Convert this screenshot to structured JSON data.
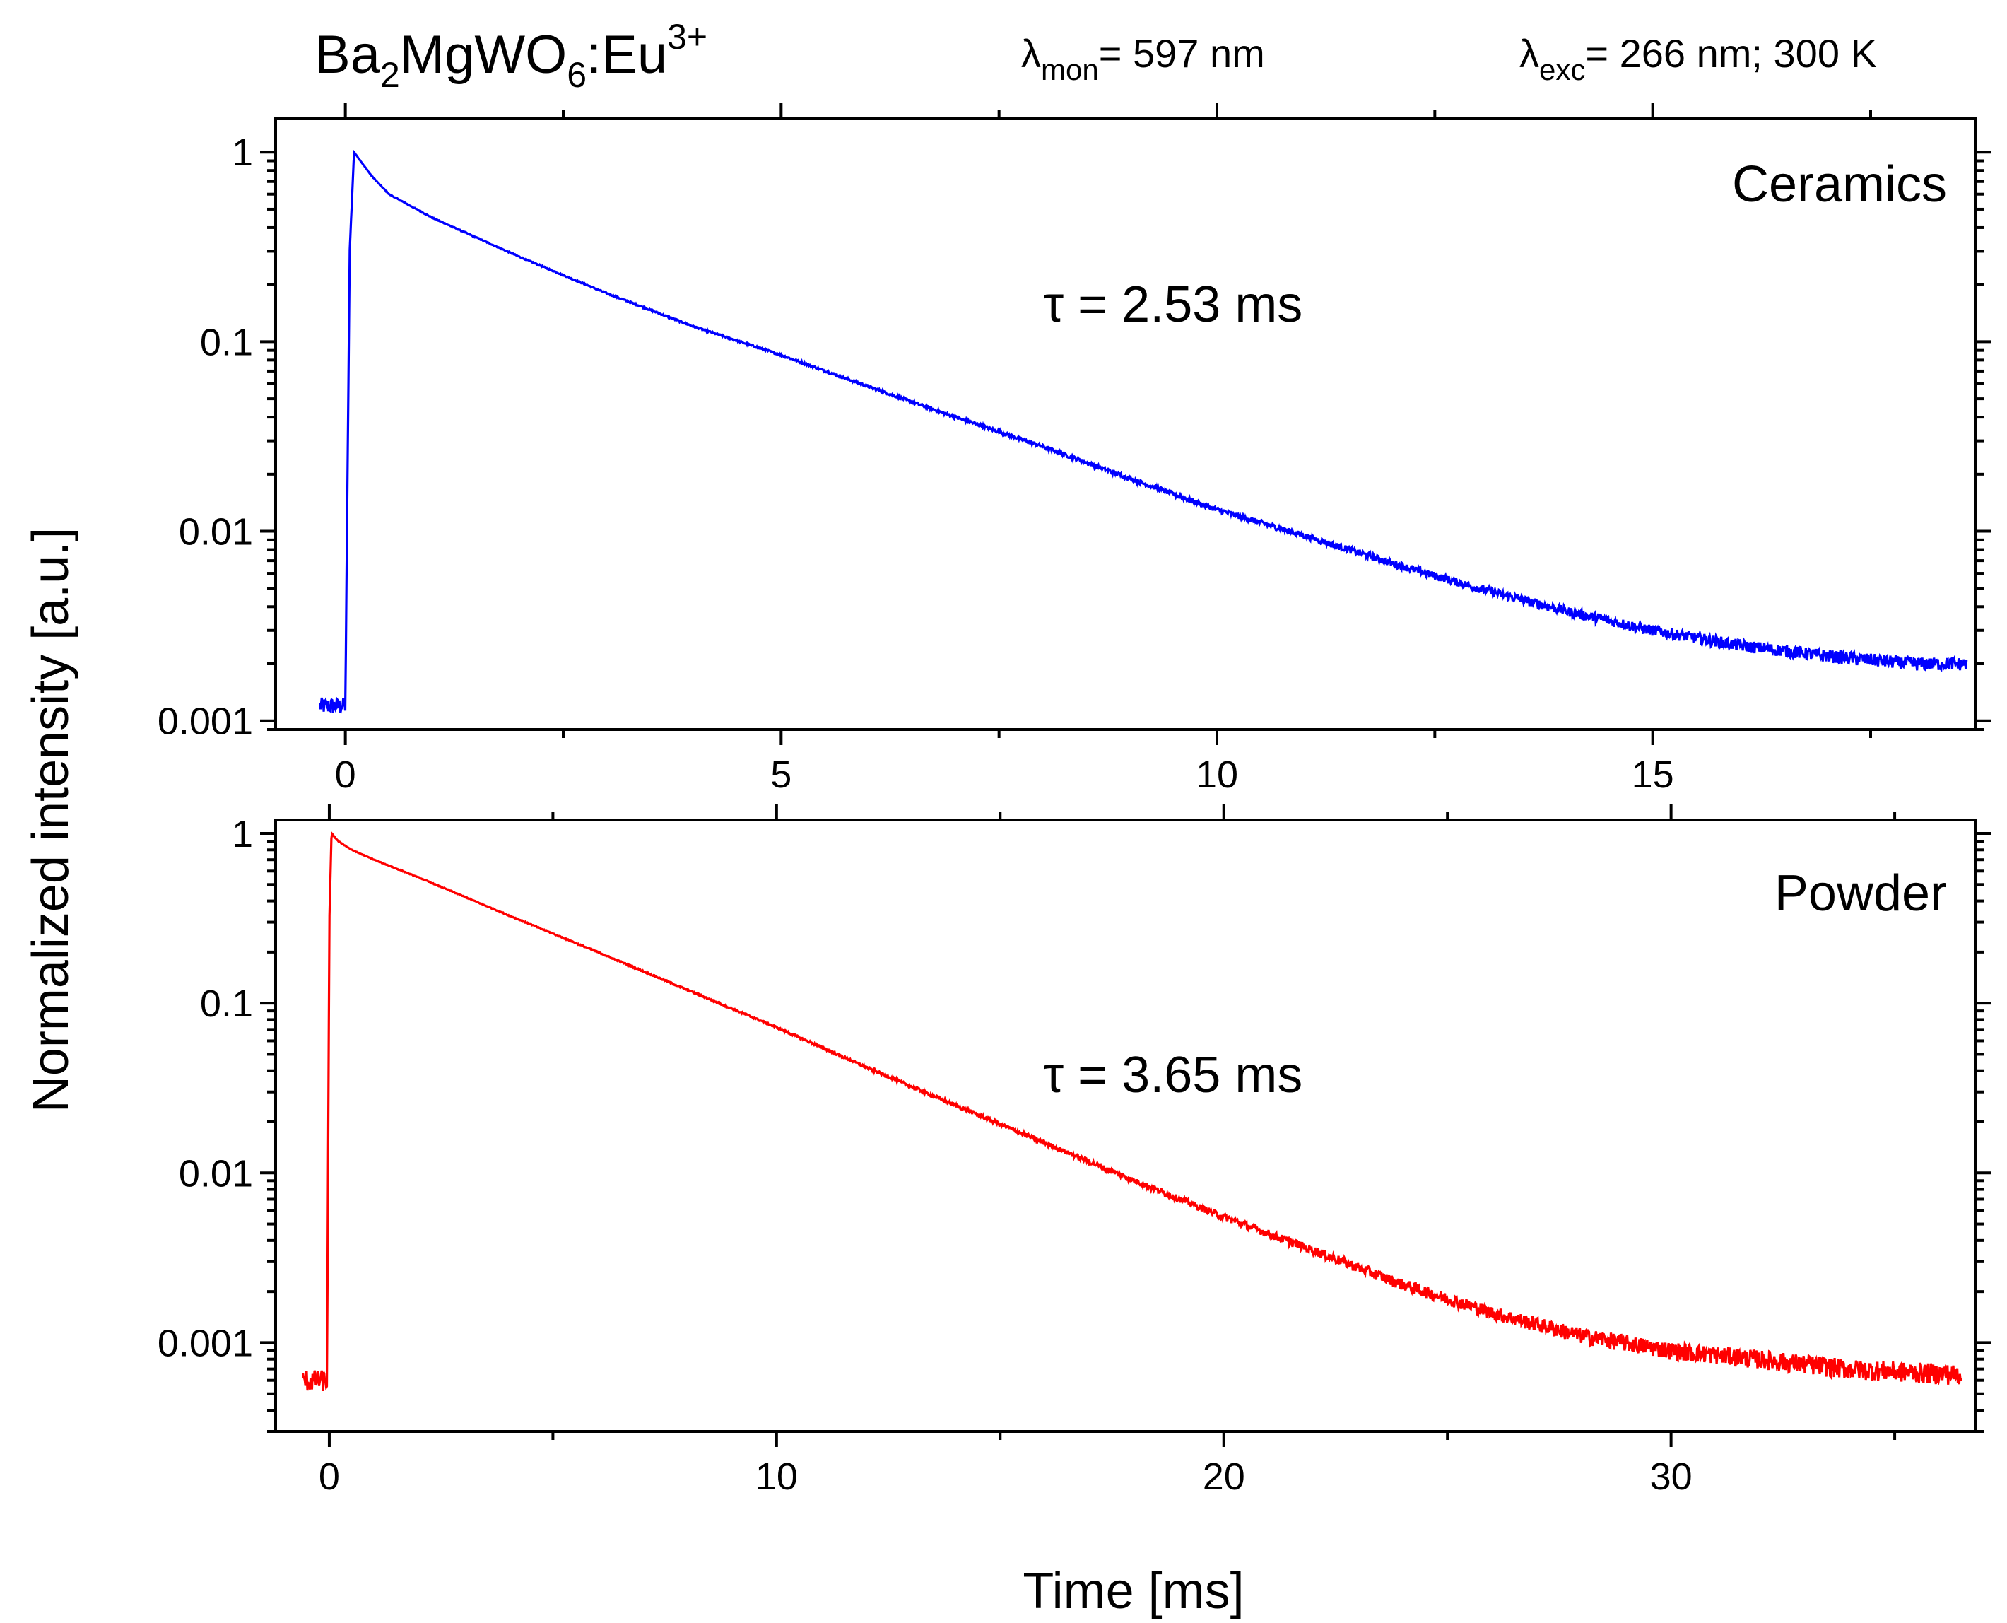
{
  "header": {
    "compound_base": "Ba",
    "compound_sub1": "2",
    "compound_mid": "MgWO",
    "compound_sub2": "6",
    "compound_tail": ":Eu",
    "compound_sup": "3+",
    "mon_symbol": "λ",
    "mon_sub": "mon",
    "mon_text": "= 597 nm",
    "exc_symbol": "λ",
    "exc_sub": "exc",
    "exc_text": "= 266 nm; 300 K"
  },
  "ylabel": "Normalized intensity [a.u.]",
  "xlabel": "Time [ms]",
  "chart_data": [
    {
      "type": "line",
      "name": "Ceramics",
      "title": "Ceramics",
      "annotation": "τ = 2.53 ms",
      "color": "#0000ff",
      "yscale": "log",
      "xlim": [
        -0.8,
        18.7
      ],
      "ylim": [
        0.0009,
        1.5
      ],
      "xticks": [
        0,
        5,
        10,
        15
      ],
      "xtick_labels": [
        "0",
        "5",
        "10",
        "15"
      ],
      "yticks": [
        1,
        0.1,
        0.01,
        0.001
      ],
      "ytick_labels": [
        "1",
        "0.1",
        "0.01",
        "0.001"
      ],
      "tau_ms": 2.53,
      "series": [
        {
          "name": "Ceramics",
          "x": [
            -0.3,
            0.0,
            0.05,
            0.1,
            0.3,
            0.5,
            1,
            2,
            3,
            4,
            5,
            6,
            7,
            8,
            9,
            10,
            11,
            12,
            13,
            14,
            15,
            16,
            17,
            18,
            18.6
          ],
          "y": [
            0.0012,
            0.0012,
            0.3,
            1.0,
            0.75,
            0.6,
            0.45,
            0.28,
            0.18,
            0.12,
            0.085,
            0.058,
            0.04,
            0.028,
            0.019,
            0.013,
            0.0095,
            0.0068,
            0.005,
            0.0038,
            0.003,
            0.0025,
            0.0022,
            0.002,
            0.002
          ]
        }
      ]
    },
    {
      "type": "line",
      "name": "Powder",
      "title": "Powder",
      "annotation": "τ = 3.65 ms",
      "color": "#ff0000",
      "yscale": "log",
      "xlim": [
        -1.2,
        36.8
      ],
      "ylim": [
        0.0003,
        1.2
      ],
      "xticks": [
        0,
        10,
        20,
        30
      ],
      "xtick_labels": [
        "0",
        "10",
        "20",
        "30"
      ],
      "yticks": [
        1,
        0.1,
        0.01,
        0.001
      ],
      "ytick_labels": [
        "1",
        "0.1",
        "0.01",
        "0.001"
      ],
      "tau_ms": 3.65,
      "series": [
        {
          "name": "Powder",
          "x": [
            -0.6,
            -0.05,
            0.0,
            0.05,
            0.2,
            0.5,
            1,
            2,
            4,
            6,
            8,
            10,
            12,
            14,
            16,
            18,
            20,
            22,
            24,
            26,
            28,
            30,
            32,
            34,
            36.5
          ],
          "y": [
            0.0006,
            0.0006,
            0.3,
            1.0,
            0.9,
            0.8,
            0.7,
            0.55,
            0.33,
            0.2,
            0.12,
            0.072,
            0.042,
            0.025,
            0.015,
            0.009,
            0.0055,
            0.0035,
            0.0022,
            0.0015,
            0.0011,
            0.0009,
            0.0008,
            0.0007,
            0.00065
          ]
        }
      ]
    }
  ]
}
